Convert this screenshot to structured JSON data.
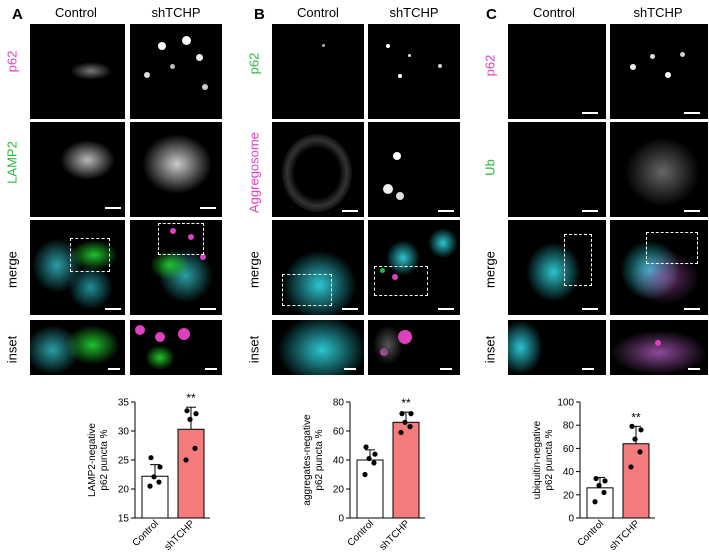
{
  "panels": [
    {
      "letter": "A",
      "col_headers": [
        "Control",
        "shTCHP"
      ],
      "rows": [
        "p62",
        "LAMP2",
        "merge",
        "inset"
      ],
      "colors": {
        "p62": "#e040c0",
        "LAMP2": "#28b83a"
      }
    },
    {
      "letter": "B",
      "col_headers": [
        "Control",
        "shTCHP"
      ],
      "rows": [
        "p62",
        "Aggregosome",
        "merge",
        "inset"
      ],
      "colors": {
        "p62": "#28b83a",
        "Aggregosome": "#e040c0"
      }
    },
    {
      "letter": "C",
      "col_headers": [
        "Control",
        "shTCHP"
      ],
      "rows": [
        "p62",
        "Ub",
        "merge",
        "inset"
      ],
      "colors": {
        "p62": "#e040c0",
        "Ub": "#28b83a"
      }
    }
  ],
  "chart_data": [
    {
      "type": "bar",
      "categories": [
        "Control",
        "shTCHP"
      ],
      "values": [
        22.2,
        30.3
      ],
      "errors": [
        2.0,
        3.8
      ],
      "points": [
        [
          20.5,
          21.2,
          22.1,
          23.8,
          25.4
        ],
        [
          25.0,
          27.0,
          32.0,
          33.0,
          33.5
        ]
      ],
      "ylabel": "LAMP2-negative\np62 puncta %",
      "ylim": [
        15,
        35
      ],
      "yticks": [
        15,
        20,
        25,
        30,
        35
      ],
      "significance": "**",
      "colors": [
        "#ffffff",
        "#f47c7c"
      ]
    },
    {
      "type": "bar",
      "categories": [
        "Control",
        "shTCHP"
      ],
      "values": [
        40,
        66
      ],
      "errors": [
        7,
        7
      ],
      "points": [
        [
          30,
          38,
          41,
          44,
          49
        ],
        [
          59,
          63,
          66,
          72,
          72
        ]
      ],
      "ylabel": "aggregates-negative\np62 puncta %",
      "ylim": [
        0,
        80
      ],
      "yticks": [
        0,
        20,
        40,
        60,
        80
      ],
      "significance": "**",
      "colors": [
        "#ffffff",
        "#f47c7c"
      ]
    },
    {
      "type": "bar",
      "categories": [
        "Control",
        "shTCHP"
      ],
      "values": [
        26,
        64
      ],
      "errors": [
        9,
        15
      ],
      "points": [
        [
          14,
          22,
          28,
          32,
          34
        ],
        [
          44,
          57,
          68,
          76,
          79
        ]
      ],
      "ylabel": "ubiquitin-negative\np62 puncta %",
      "ylim": [
        0,
        100
      ],
      "yticks": [
        0,
        20,
        40,
        60,
        80,
        100
      ],
      "significance": "**",
      "colors": [
        "#ffffff",
        "#f47c7c"
      ]
    }
  ]
}
